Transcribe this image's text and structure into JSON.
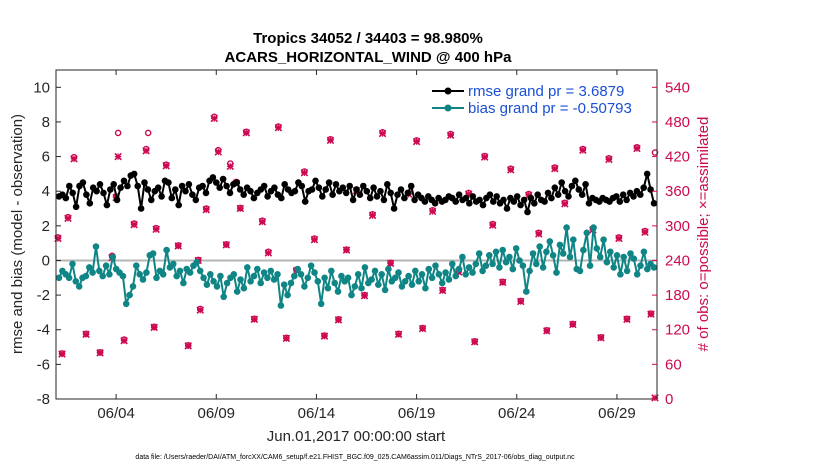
{
  "chart_data": {
    "type": "line",
    "title_line1": "Tropics 34052 / 34403 = 98.980%",
    "title_line2": "ACARS_HORIZONTAL_WIND @ 400 hPa",
    "xlabel": "Jun.01,2017 00:00:00 start",
    "ylabel": "rmse and bias (model - observation)",
    "y2label": "# of obs: o=possible; ×=assimilated",
    "xlim": [
      0.5,
      30.5
    ],
    "ylim": [
      -8,
      11
    ],
    "y2lim": [
      0,
      570
    ],
    "x_ticks": [
      {
        "value": 3.5,
        "label": "06/04"
      },
      {
        "value": 8.5,
        "label": "06/09"
      },
      {
        "value": 13.5,
        "label": "06/14"
      },
      {
        "value": 18.5,
        "label": "06/19"
      },
      {
        "value": 23.5,
        "label": "06/24"
      },
      {
        "value": 28.5,
        "label": "06/29"
      }
    ],
    "y_ticks": [
      10,
      8,
      6,
      4,
      2,
      0,
      -2,
      -4,
      -6,
      -8
    ],
    "y2_ticks": [
      540,
      480,
      420,
      360,
      300,
      240,
      180,
      120,
      60,
      0
    ],
    "zero_line": 0,
    "series": [
      {
        "name": "rmse grand pr = 3.6879",
        "color": "#000000",
        "values": [
          3.7,
          3.8,
          3.6,
          4.3,
          3.9,
          3.1,
          4.3,
          4.5,
          3.8,
          3.3,
          4.2,
          4.0,
          4.4,
          3.9,
          3.2,
          4.1,
          4.4,
          3.5,
          4.2,
          4.6,
          4.3,
          4.9,
          5.0,
          4.3,
          3.0,
          4.5,
          4.1,
          3.5,
          4.0,
          4.2,
          3.7,
          4.6,
          4.5,
          3.6,
          4.1,
          3.2,
          4.3,
          4.0,
          4.4,
          3.8,
          3.5,
          4.2,
          4.3,
          3.9,
          4.6,
          4.8,
          4.5,
          4.2,
          4.7,
          4.3,
          3.9,
          4.4,
          4.5,
          4.1,
          3.8,
          4.2,
          4.0,
          3.6,
          3.9,
          4.1,
          4.3,
          3.7,
          4.0,
          4.2,
          3.8,
          3.6,
          4.4,
          4.1,
          3.9,
          4.0,
          4.5,
          4.3,
          3.4,
          4.0,
          4.1,
          4.6,
          4.2,
          3.7,
          4.1,
          4.5,
          3.8,
          4.4,
          4.0,
          4.2,
          3.9,
          4.3,
          3.5,
          4.1,
          3.8,
          4.3,
          4.0,
          3.6,
          4.2,
          3.7,
          4.0,
          3.5,
          4.4,
          3.9,
          3.0,
          3.8,
          4.1,
          3.6,
          3.9,
          4.3,
          3.5,
          3.8,
          3.6,
          3.4,
          3.7,
          3.5,
          3.3,
          3.6,
          3.4,
          3.5,
          3.7,
          3.6,
          3.4,
          3.8,
          3.5,
          3.6,
          3.3,
          3.7,
          3.4,
          3.5,
          3.2,
          3.6,
          3.8,
          3.4,
          3.7,
          3.3,
          3.5,
          3.0,
          3.6,
          3.4,
          3.7,
          3.2,
          3.5,
          2.8,
          3.6,
          3.3,
          3.8,
          3.5,
          3.4,
          3.9,
          3.6,
          4.2,
          3.8,
          4.5,
          4.0,
          3.7,
          4.3,
          4.6,
          4.1,
          3.8,
          4.4,
          3.3,
          3.6,
          3.5,
          3.4,
          3.6,
          3.5,
          3.4,
          3.6,
          3.7,
          3.4,
          3.8,
          3.5,
          3.9,
          3.7,
          4.0,
          3.8,
          4.2,
          5.0,
          4.1,
          3.3
        ]
      },
      {
        "name": "bias grand pr = -0.50793",
        "color": "#0f8585",
        "values": [
          -1.0,
          -0.6,
          -0.8,
          -1.0,
          -0.2,
          -1.2,
          -1.5,
          -1.0,
          -0.9,
          -0.4,
          -0.7,
          0.8,
          -0.6,
          -0.9,
          -0.3,
          -0.8,
          0.2,
          -0.5,
          -0.7,
          -0.9,
          -2.5,
          -2.0,
          -1.5,
          -0.3,
          -0.8,
          -1.1,
          -0.7,
          0.3,
          0.4,
          -1.0,
          -0.6,
          -0.8,
          0.6,
          -0.4,
          -0.2,
          -0.9,
          -0.6,
          -1.3,
          -0.5,
          -0.7,
          -0.3,
          -0.1,
          -0.6,
          -1.0,
          -1.4,
          -0.8,
          -1.2,
          -1.5,
          -0.9,
          -2.1,
          -1.3,
          -1.0,
          -0.8,
          -1.8,
          -1.1,
          -1.6,
          -0.4,
          -1.2,
          -0.9,
          -0.5,
          -1.3,
          -0.7,
          -1.0,
          -0.6,
          -1.1,
          -0.8,
          -2.6,
          -1.4,
          -2.0,
          -1.3,
          -0.9,
          -0.5,
          -0.8,
          -1.5,
          -1.0,
          -0.3,
          -0.7,
          -1.2,
          -2.5,
          -1.0,
          -1.6,
          -0.6,
          -1.3,
          -1.8,
          -0.9,
          -1.2,
          -1.0,
          -2.0,
          -1.5,
          -0.8,
          -1.6,
          -0.4,
          -1.3,
          -1.1,
          -0.6,
          -1.4,
          -0.8,
          -1.7,
          -0.5,
          -1.2,
          -1.0,
          -0.7,
          -1.5,
          -1.2,
          -0.9,
          -1.4,
          -0.6,
          -1.2,
          -0.8,
          -1.6,
          -0.5,
          -1.0,
          -0.3,
          -0.8,
          -1.3,
          -0.7,
          -1.1,
          -0.2,
          -0.9,
          -0.5,
          0.2,
          -0.8,
          -0.4,
          -0.7,
          -0.2,
          0.4,
          -0.6,
          -0.3,
          0.3,
          -0.2,
          0.5,
          -0.4,
          0.6,
          -0.1,
          0.2,
          -0.5,
          0.7,
          0.0,
          -0.3,
          -1.8,
          -0.6,
          0.4,
          -0.2,
          0.8,
          -0.4,
          0.5,
          1.1,
          0.3,
          -0.7,
          0.9,
          0.4,
          1.9,
          0.2,
          1.2,
          -0.5,
          -0.6,
          0.6,
          1.6,
          -0.3,
          1.9,
          0.7,
          0.2,
          1.2,
          -0.1,
          0.5,
          -0.4,
          0.3,
          -0.8,
          0.2,
          -0.6,
          0.4,
          0.1,
          -0.8,
          -0.3,
          0.5,
          -0.5,
          -0.2,
          -0.4
        ]
      }
    ],
    "obs_possible_x": [
      0.6,
      0.8,
      1.1,
      1.4,
      2.0,
      2.7,
      3.3,
      3.5,
      3.6,
      3.9,
      4.4,
      5.0,
      5.1,
      5.4,
      5.5,
      6.0,
      6.6,
      7.1,
      7.6,
      7.7,
      8.0,
      8.4,
      8.6,
      9.0,
      9.2,
      9.5,
      9.7,
      10.0,
      10.4,
      10.8,
      11.1,
      11.6,
      12.0,
      12.5,
      12.9,
      13.4,
      13.9,
      14.2,
      14.6,
      15.0,
      15.5,
      15.9,
      16.3,
      16.8,
      17.2,
      17.6,
      18.1,
      18.5,
      18.8,
      19.3,
      19.8,
      20.2,
      20.6,
      21.1,
      21.4,
      21.9,
      22.3,
      22.8,
      23.2,
      23.7,
      24.1,
      24.6,
      25.0,
      25.4,
      25.9,
      26.3,
      26.8,
      27.3,
      27.7,
      28.1,
      28.6,
      29.0,
      29.5,
      29.9,
      30.2,
      30.4
    ],
    "obs_possible_y": [
      280,
      79,
      315,
      419,
      113,
      81,
      248,
      351,
      461,
      103,
      304,
      433,
      461,
      125,
      296,
      406,
      266,
      93,
      241,
      156,
      330,
      489,
      431,
      268,
      408,
      376,
      331,
      463,
      139,
      309,
      255,
      472,
      106,
      224,
      394,
      278,
      110,
      450,
      138,
      259,
      363,
      180,
      320,
      462,
      236,
      113,
      357,
      448,
      123,
      327,
      189,
      459,
      222,
      357,
      100,
      421,
      303,
      203,
      399,
      170,
      355,
      288,
      119,
      401,
      340,
      130,
      433,
      295,
      107,
      417,
      280,
      139,
      436,
      291,
      148,
      427
    ],
    "obs_assim_x": [
      0.6,
      0.8,
      1.1,
      1.4,
      2.0,
      2.7,
      3.3,
      3.5,
      3.6,
      3.9,
      4.4,
      5.0,
      5.4,
      5.5,
      6.0,
      6.6,
      7.1,
      7.6,
      7.7,
      8.0,
      8.4,
      8.6,
      9.0,
      9.2,
      9.5,
      9.7,
      10.0,
      10.4,
      10.8,
      11.1,
      11.6,
      12.0,
      12.5,
      12.9,
      13.4,
      13.9,
      14.2,
      14.6,
      15.0,
      15.5,
      15.9,
      16.3,
      16.8,
      17.2,
      17.6,
      18.1,
      18.5,
      18.8,
      19.3,
      19.8,
      20.2,
      20.6,
      21.1,
      21.4,
      21.9,
      22.3,
      22.8,
      23.2,
      23.7,
      24.1,
      24.6,
      25.0,
      25.4,
      25.9,
      26.3,
      26.8,
      27.3,
      27.7,
      28.1,
      28.6,
      29.0,
      29.5,
      29.9,
      30.2,
      30.4
    ],
    "obs_assim_y": [
      278,
      78,
      313,
      416,
      112,
      80,
      245,
      349,
      420,
      101,
      302,
      430,
      124,
      294,
      404,
      265,
      92,
      240,
      154,
      328,
      486,
      428,
      267,
      403,
      374,
      330,
      461,
      138,
      307,
      253,
      470,
      105,
      222,
      392,
      276,
      109,
      448,
      137,
      258,
      361,
      179,
      318,
      460,
      235,
      112,
      355,
      446,
      122,
      325,
      188,
      457,
      220,
      355,
      99,
      419,
      301,
      202,
      397,
      169,
      353,
      286,
      118,
      399,
      338,
      129,
      431,
      293,
      106,
      415,
      278,
      138,
      434,
      289,
      147,
      2
    ],
    "legend": "top-right",
    "footnote": "data file: /Users/raeder/DAI/ATM_forcXX/CAM6_setup/f.e21.FHIST_BGC.f09_025.CAM6assim.011/Diags_NTrS_2017-06/obs_diag_output.nc",
    "colors": {
      "obs": "#cc0a52",
      "rmse": "#000000",
      "bias": "#0f8585",
      "legend_text": "#1a4fd6",
      "zero_line": "#b5b5b5",
      "axis": "#262626"
    }
  }
}
